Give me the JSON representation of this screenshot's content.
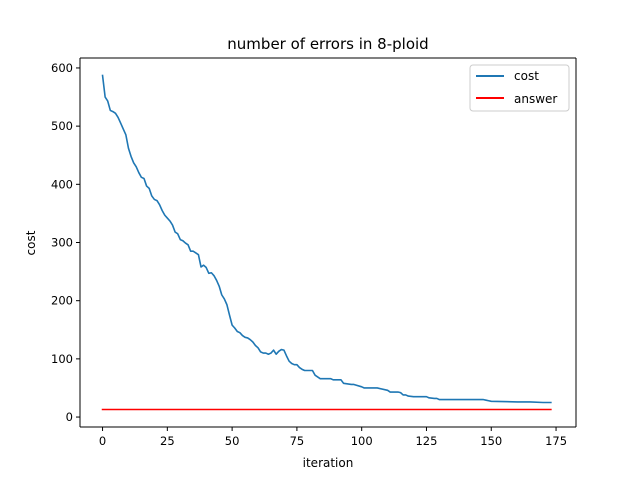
{
  "chart_data": {
    "type": "line",
    "title": "number of errors in 8-ploid",
    "xlabel": "iteration",
    "ylabel": "cost",
    "xlim": [
      -8.7,
      182.7
    ],
    "ylim": [
      -17.1,
      617.1
    ],
    "xticks": [
      0,
      25,
      50,
      75,
      100,
      125,
      150,
      175
    ],
    "yticks": [
      0,
      100,
      200,
      300,
      400,
      500,
      600
    ],
    "xtick_labels": [
      "0",
      "25",
      "50",
      "75",
      "100",
      "125",
      "150",
      "175"
    ],
    "ytick_labels": [
      "0",
      "100",
      "200",
      "300",
      "400",
      "500",
      "600"
    ],
    "legend_position": "top-right",
    "series": [
      {
        "name": "cost",
        "color": "#1f77b4",
        "x": [
          0,
          1,
          2,
          3,
          4,
          5,
          6,
          7,
          8,
          9,
          10,
          11,
          12,
          13,
          14,
          15,
          16,
          17,
          18,
          19,
          20,
          21,
          22,
          23,
          24,
          25,
          26,
          27,
          28,
          29,
          30,
          31,
          32,
          33,
          34,
          35,
          36,
          37,
          38,
          39,
          40,
          41,
          42,
          43,
          44,
          45,
          46,
          47,
          48,
          49,
          50,
          51,
          52,
          53,
          54,
          55,
          56,
          57,
          58,
          59,
          60,
          61,
          62,
          63,
          64,
          65,
          66,
          67,
          68,
          69,
          70,
          71,
          72,
          73,
          74,
          75,
          76,
          77,
          78,
          79,
          80,
          81,
          82,
          84,
          88,
          89,
          90,
          92,
          93,
          96,
          97,
          100,
          101,
          105,
          106,
          110,
          111,
          114,
          115,
          116,
          117,
          118,
          120,
          125,
          126,
          128,
          129,
          130,
          140,
          147,
          148,
          149,
          150,
          160,
          165,
          170,
          173
        ],
        "values": [
          587,
          550,
          543,
          527,
          525,
          522,
          515,
          505,
          495,
          485,
          462,
          448,
          437,
          430,
          420,
          412,
          410,
          397,
          393,
          380,
          374,
          372,
          365,
          355,
          347,
          342,
          337,
          330,
          318,
          315,
          305,
          303,
          299,
          296,
          285,
          285,
          282,
          279,
          258,
          261,
          257,
          247,
          248,
          243,
          235,
          225,
          210,
          203,
          193,
          175,
          158,
          153,
          147,
          145,
          140,
          137,
          136,
          133,
          129,
          123,
          119,
          112,
          110,
          110,
          108,
          110,
          115,
          108,
          113,
          116,
          115,
          105,
          96,
          92,
          90,
          90,
          85,
          82,
          80,
          80,
          80,
          80,
          72,
          66,
          66,
          64,
          64,
          64,
          58,
          56,
          56,
          52,
          50,
          50,
          50,
          46,
          43,
          43,
          42,
          38,
          38,
          36,
          35,
          35,
          33,
          32,
          32,
          30,
          30,
          30,
          29,
          28,
          27,
          26,
          26,
          25,
          25
        ]
      },
      {
        "name": "answer",
        "color": "#ff0000",
        "x": [
          0,
          173
        ],
        "values": [
          13,
          13
        ]
      }
    ]
  }
}
